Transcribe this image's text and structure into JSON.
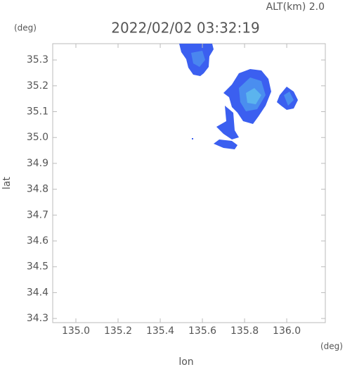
{
  "chart_data": {
    "type": "map",
    "subtitle": "ALT(km)  2.0",
    "title": "2022/02/02 03:32:19",
    "y_unit": "(deg)",
    "x_unit": "(deg)",
    "x_label": "lon",
    "y_label": "lat",
    "xlim": [
      134.89,
      136.183
    ],
    "ylim": [
      34.284,
      35.363
    ],
    "xticks": [
      {
        "value": 135,
        "label": "135.0"
      },
      135.2,
      135.4,
      135.6,
      135.8,
      {
        "value": 136,
        "label": "136.0"
      }
    ],
    "yticks": [
      34.3,
      34.4,
      34.5,
      34.6,
      34.7,
      34.8,
      34.9,
      {
        "value": 35,
        "label": "35.0"
      },
      35.1,
      35.2,
      35.3
    ]
  }
}
